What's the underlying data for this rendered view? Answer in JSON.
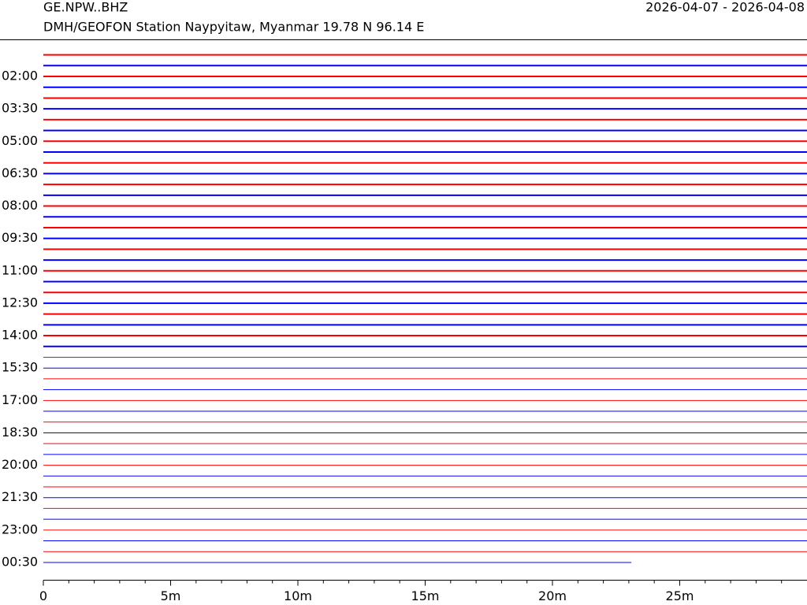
{
  "chart_data": {
    "type": "helicorder",
    "title": "GE.NPW..BHZ",
    "subtitle": "DMH/GEOFON Station Naypyitaw, Myanmar  19.78 N 96.14 E",
    "date_range": "2026-04-07 - 2026-04-08",
    "row_labels": [
      null,
      null,
      "02:00",
      null,
      null,
      "03:30",
      null,
      null,
      "05:00",
      null,
      null,
      "06:30",
      null,
      null,
      "08:00",
      null,
      null,
      "09:30",
      null,
      null,
      "11:00",
      null,
      null,
      "12:30",
      null,
      null,
      "14:00",
      null,
      null,
      "15:30",
      null,
      null,
      "17:00",
      null,
      null,
      "18:30",
      null,
      null,
      "20:00",
      null,
      null,
      "21:30",
      null,
      null,
      "23:00",
      null,
      null,
      "00:30"
    ],
    "colors": [
      "#ff0000",
      "#0000ff"
    ],
    "xlim": [
      0,
      30
    ],
    "xticks": [
      0,
      {
        "value": 5,
        "label": "5m"
      },
      {
        "value": 10,
        "label": "10m"
      },
      {
        "value": 15,
        "label": "15m"
      },
      {
        "value": 20,
        "label": "20m"
      },
      {
        "value": 25,
        "label": "25m"
      }
    ],
    "xminorticks": [
      1,
      2,
      3,
      4,
      6,
      7,
      8,
      9,
      11,
      12,
      13,
      14,
      16,
      17,
      18,
      19,
      21,
      22,
      23,
      24,
      26,
      27,
      28,
      29
    ],
    "last_row_end": 23.1
  }
}
